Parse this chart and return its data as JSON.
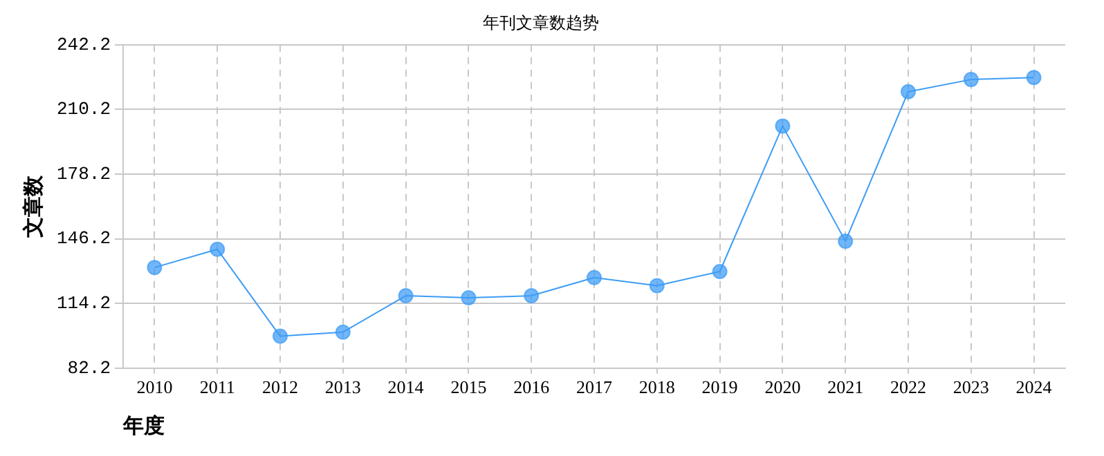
{
  "chart_data": {
    "type": "line",
    "title": "年刊文章数趋势",
    "xlabel": "年度",
    "ylabel": "文章数",
    "categories": [
      "2010",
      "2011",
      "2012",
      "2013",
      "2014",
      "2015",
      "2016",
      "2017",
      "2018",
      "2019",
      "2020",
      "2021",
      "2022",
      "2023",
      "2024"
    ],
    "series": [
      {
        "color": "#3d9cf5",
        "values": [
          132,
          141,
          98,
          100,
          118,
          117,
          118,
          127,
          123,
          130,
          202,
          145,
          219,
          225,
          226
        ]
      }
    ],
    "ylim": [
      82.2,
      242.2
    ],
    "yticks": [
      82.2,
      114.2,
      146.2,
      178.2,
      210.2,
      242.2
    ],
    "grid": true,
    "legend": false,
    "marker": "circle",
    "line_style": "solid"
  }
}
